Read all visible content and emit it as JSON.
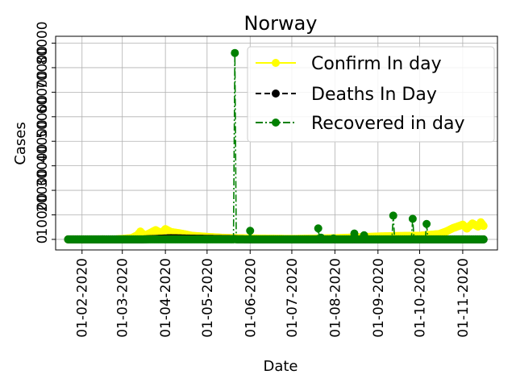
{
  "chart_data": {
    "type": "line",
    "title": "Norway",
    "xlabel": "Date",
    "ylabel": "Cases",
    "x_start": "2020-01-22",
    "x_end": "2020-11-16",
    "xlim": [
      "2020-01-13",
      "2020-11-26"
    ],
    "ylim": [
      -4300,
      82800
    ],
    "grid": true,
    "legend_position": "top-right",
    "x_ticks": [
      "01-02-2020",
      "01-03-2020",
      "01-04-2020",
      "01-05-2020",
      "01-06-2020",
      "01-07-2020",
      "01-08-2020",
      "01-09-2020",
      "01-10-2020",
      "01-11-2020"
    ],
    "x_tick_dates": [
      "2020-02-01",
      "2020-03-01",
      "2020-04-01",
      "2020-05-01",
      "2020-06-01",
      "2020-07-01",
      "2020-08-01",
      "2020-09-01",
      "2020-10-01",
      "2020-11-01"
    ],
    "y_ticks": [
      "0",
      "10000",
      "20000",
      "30000",
      "40000",
      "50000",
      "60000",
      "70000",
      "80000"
    ],
    "y_tick_values": [
      0,
      10000,
      20000,
      30000,
      40000,
      50000,
      60000,
      70000,
      80000
    ],
    "series": [
      {
        "name": "Confirm In day",
        "color": "#ffff00",
        "line_style": "solid",
        "marker": "circle",
        "shape": [
          [
            "2020-01-22",
            0
          ],
          [
            "2020-02-25",
            0
          ],
          [
            "2020-03-01",
            200
          ],
          [
            "2020-03-08",
            600
          ],
          [
            "2020-03-12",
            1800
          ],
          [
            "2020-03-14",
            3200
          ],
          [
            "2020-03-17",
            1500
          ],
          [
            "2020-03-21",
            2600
          ],
          [
            "2020-03-25",
            3800
          ],
          [
            "2020-03-29",
            2500
          ],
          [
            "2020-04-01",
            4200
          ],
          [
            "2020-04-05",
            3000
          ],
          [
            "2020-04-10",
            2600
          ],
          [
            "2020-04-15",
            2100
          ],
          [
            "2020-04-20",
            1500
          ],
          [
            "2020-04-27",
            1200
          ],
          [
            "2020-05-05",
            900
          ],
          [
            "2020-05-15",
            600
          ],
          [
            "2020-06-01",
            400
          ],
          [
            "2020-07-01",
            200
          ],
          [
            "2020-08-01",
            500
          ],
          [
            "2020-08-20",
            900
          ],
          [
            "2020-09-01",
            1200
          ],
          [
            "2020-09-15",
            1400
          ],
          [
            "2020-10-01",
            1500
          ],
          [
            "2020-10-15",
            2200
          ],
          [
            "2020-10-20",
            3200
          ],
          [
            "2020-10-25",
            4600
          ],
          [
            "2020-10-28",
            5200
          ],
          [
            "2020-11-01",
            6000
          ],
          [
            "2020-11-04",
            4400
          ],
          [
            "2020-11-08",
            6500
          ],
          [
            "2020-11-12",
            5200
          ],
          [
            "2020-11-14",
            7000
          ],
          [
            "2020-11-16",
            5500
          ]
        ]
      },
      {
        "name": "Deaths In Day",
        "color": "#000000",
        "line_style": "dashed",
        "marker": "circle",
        "shape": [
          [
            "2020-01-22",
            0
          ],
          [
            "2020-03-15",
            0
          ],
          [
            "2020-03-25",
            200
          ],
          [
            "2020-04-05",
            500
          ],
          [
            "2020-04-20",
            300
          ],
          [
            "2020-05-20",
            100
          ],
          [
            "2020-06-01",
            0
          ],
          [
            "2020-11-16",
            0
          ]
        ]
      },
      {
        "name": "Recovered in day",
        "color": "#008000",
        "line_style": "dashdot",
        "marker": "circle",
        "baseline": 0,
        "spikes": [
          [
            "2020-05-21",
            76000
          ],
          [
            "2020-06-01",
            3500
          ],
          [
            "2020-07-20",
            4500
          ],
          [
            "2020-07-22",
            700
          ],
          [
            "2020-07-31",
            400
          ],
          [
            "2020-08-15",
            2400
          ],
          [
            "2020-08-22",
            1700
          ],
          [
            "2020-09-12",
            9700
          ],
          [
            "2020-09-26",
            8400
          ],
          [
            "2020-10-06",
            6300
          ]
        ]
      }
    ]
  }
}
